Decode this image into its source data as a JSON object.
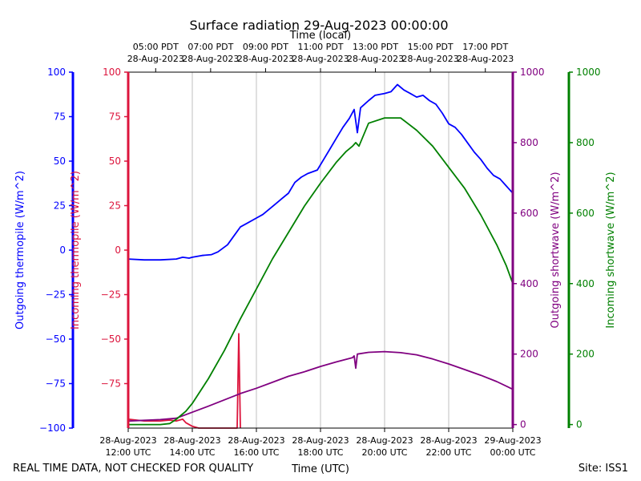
{
  "chart_data": {
    "type": "line",
    "title": "Surface radiation 29-Aug-2023 00:00:00",
    "top_axis_label": "Time (local)",
    "x_label": "Time (UTC)",
    "footer_left": "REAL TIME DATA, NOT CHECKED FOR QUALITY",
    "footer_right": "Site: ISS1",
    "x_range_utc_hours": [
      12,
      24
    ],
    "bottom_ticks": [
      {
        "line1": "28-Aug-2023",
        "line2": "12:00 UTC"
      },
      {
        "line1": "28-Aug-2023",
        "line2": "14:00 UTC"
      },
      {
        "line1": "28-Aug-2023",
        "line2": "16:00 UTC"
      },
      {
        "line1": "28-Aug-2023",
        "line2": "18:00 UTC"
      },
      {
        "line1": "28-Aug-2023",
        "line2": "20:00 UTC"
      },
      {
        "line1": "28-Aug-2023",
        "line2": "22:00 UTC"
      },
      {
        "line1": "29-Aug-2023",
        "line2": "00:00 UTC"
      }
    ],
    "bottom_tick_hours": [
      12,
      14,
      16,
      18,
      20,
      22,
      24
    ],
    "top_ticks": [
      {
        "line1": "05:00 PDT",
        "line2": "28-Aug-2023"
      },
      {
        "line1": "07:00 PDT",
        "line2": "28-Aug-2023"
      },
      {
        "line1": "09:00 PDT",
        "line2": "28-Aug-2023"
      },
      {
        "line1": "11:00 PDT",
        "line2": "28-Aug-2023"
      },
      {
        "line1": "13:00 PDT",
        "line2": "28-Aug-2023"
      },
      {
        "line1": "15:00 PDT",
        "line2": "28-Aug-2023"
      },
      {
        "line1": "17:00 PDT",
        "line2": "28-Aug-2023"
      }
    ],
    "grid_x": true,
    "axes": [
      {
        "id": "out_thermo",
        "label": "Outgoing thermopile (W/m^2)",
        "color": "#0000ff",
        "range": [
          -100,
          100
        ],
        "ticks": [
          100,
          75,
          50,
          25,
          0,
          -25,
          -50,
          -75,
          -100
        ]
      },
      {
        "id": "in_thermo",
        "label": "Incoming thermopile (W/m^2)",
        "color": "#dc143c",
        "range": [
          -100,
          100
        ],
        "ticks": [
          100,
          75,
          50,
          25,
          0,
          -25,
          -50,
          -75
        ]
      },
      {
        "id": "out_sw",
        "label": "Outgoing shortwave (W/m^2)",
        "color": "#800080",
        "range": [
          -10,
          1000
        ],
        "ticks": [
          1000,
          800,
          600,
          400,
          200,
          0
        ]
      },
      {
        "id": "in_sw",
        "label": "Incoming shortwave (W/m^2)",
        "color": "#008000",
        "range": [
          -10,
          1000
        ],
        "ticks": [
          1000,
          800,
          600,
          400,
          200,
          0
        ]
      }
    ],
    "series": [
      {
        "name": "Outgoing thermopile",
        "axis": "out_thermo",
        "color": "#0000ff",
        "points": [
          [
            12,
            -5
          ],
          [
            12.5,
            -5.5
          ],
          [
            13,
            -5.5
          ],
          [
            13.5,
            -5
          ],
          [
            13.7,
            -4
          ],
          [
            13.9,
            -4.5
          ],
          [
            14,
            -4
          ],
          [
            14.3,
            -3
          ],
          [
            14.6,
            -2.5
          ],
          [
            14.8,
            -1
          ],
          [
            15.1,
            3
          ],
          [
            15.3,
            8
          ],
          [
            15.5,
            13
          ],
          [
            15.7,
            15
          ],
          [
            16,
            18
          ],
          [
            16.2,
            20
          ],
          [
            16.4,
            23
          ],
          [
            16.6,
            26
          ],
          [
            16.8,
            29
          ],
          [
            17,
            32
          ],
          [
            17.2,
            38
          ],
          [
            17.4,
            41
          ],
          [
            17.6,
            43
          ],
          [
            17.9,
            45
          ],
          [
            18.1,
            51
          ],
          [
            18.3,
            57
          ],
          [
            18.5,
            63
          ],
          [
            18.7,
            69
          ],
          [
            18.9,
            74
          ],
          [
            19.05,
            79
          ],
          [
            19.15,
            66
          ],
          [
            19.25,
            80
          ],
          [
            19.5,
            84
          ],
          [
            19.7,
            87
          ],
          [
            20,
            88
          ],
          [
            20.2,
            89
          ],
          [
            20.4,
            93
          ],
          [
            20.6,
            90
          ],
          [
            20.8,
            88
          ],
          [
            21,
            86
          ],
          [
            21.2,
            87
          ],
          [
            21.4,
            84
          ],
          [
            21.6,
            82
          ],
          [
            21.8,
            77
          ],
          [
            22,
            71
          ],
          [
            22.2,
            69
          ],
          [
            22.4,
            65
          ],
          [
            22.6,
            60
          ],
          [
            22.8,
            55
          ],
          [
            23,
            51
          ],
          [
            23.2,
            46
          ],
          [
            23.4,
            42
          ],
          [
            23.6,
            40
          ],
          [
            23.8,
            36
          ],
          [
            24,
            32
          ]
        ]
      },
      {
        "name": "Incoming thermopile",
        "axis": "in_thermo",
        "color": "#dc143c",
        "points": [
          [
            12,
            -95
          ],
          [
            12.5,
            -96
          ],
          [
            13,
            -96
          ],
          [
            13.3,
            -95.5
          ],
          [
            13.5,
            -96
          ],
          [
            13.7,
            -95
          ],
          [
            13.8,
            -97
          ],
          [
            14,
            -99
          ],
          [
            14.2,
            -100
          ],
          [
            15.4,
            -100
          ],
          [
            15.45,
            -47
          ],
          [
            15.5,
            -100
          ]
        ]
      },
      {
        "name": "Outgoing shortwave",
        "axis": "out_sw",
        "color": "#800080",
        "points": [
          [
            12,
            10
          ],
          [
            12.5,
            12
          ],
          [
            13,
            14
          ],
          [
            13.5,
            18
          ],
          [
            14,
            35
          ],
          [
            14.5,
            52
          ],
          [
            15,
            70
          ],
          [
            15.5,
            88
          ],
          [
            16,
            103
          ],
          [
            16.5,
            120
          ],
          [
            17,
            137
          ],
          [
            17.5,
            150
          ],
          [
            18,
            165
          ],
          [
            18.5,
            178
          ],
          [
            19,
            190
          ],
          [
            19.05,
            195
          ],
          [
            19.1,
            160
          ],
          [
            19.15,
            200
          ],
          [
            19.5,
            205
          ],
          [
            20,
            207
          ],
          [
            20.5,
            204
          ],
          [
            21,
            198
          ],
          [
            21.5,
            186
          ],
          [
            22,
            172
          ],
          [
            22.5,
            156
          ],
          [
            23,
            140
          ],
          [
            23.5,
            122
          ],
          [
            24,
            100
          ]
        ]
      },
      {
        "name": "Incoming shortwave",
        "axis": "in_sw",
        "color": "#008000",
        "points": [
          [
            12,
            0
          ],
          [
            12.5,
            0
          ],
          [
            13,
            0
          ],
          [
            13.3,
            3
          ],
          [
            13.5,
            15
          ],
          [
            13.8,
            38
          ],
          [
            14,
            60
          ],
          [
            14.5,
            130
          ],
          [
            15,
            210
          ],
          [
            15.5,
            300
          ],
          [
            16,
            385
          ],
          [
            16.5,
            470
          ],
          [
            17,
            545
          ],
          [
            17.5,
            620
          ],
          [
            18,
            685
          ],
          [
            18.5,
            745
          ],
          [
            18.8,
            775
          ],
          [
            19,
            790
          ],
          [
            19.1,
            800
          ],
          [
            19.2,
            790
          ],
          [
            19.5,
            855
          ],
          [
            20,
            870
          ],
          [
            20.5,
            870
          ],
          [
            21,
            835
          ],
          [
            21.5,
            790
          ],
          [
            22,
            730
          ],
          [
            22.5,
            670
          ],
          [
            23,
            595
          ],
          [
            23.5,
            510
          ],
          [
            23.8,
            450
          ],
          [
            24,
            400
          ]
        ]
      }
    ]
  }
}
